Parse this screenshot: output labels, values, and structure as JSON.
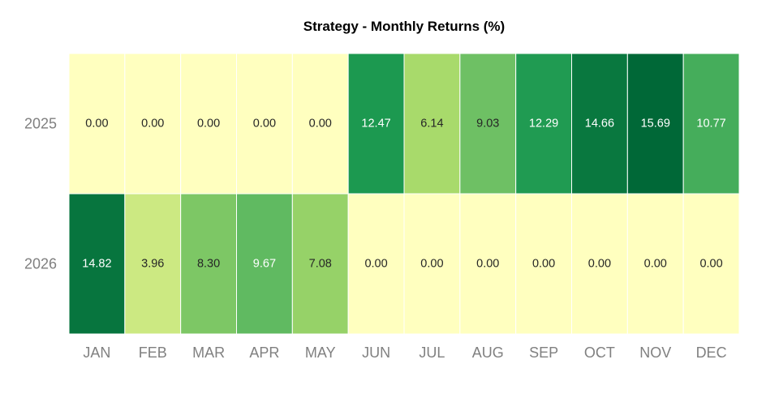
{
  "chart_data": {
    "type": "heatmap",
    "title": "Strategy - Monthly Returns (%)",
    "xlabel": "",
    "ylabel": "",
    "x_categories": [
      "JAN",
      "FEB",
      "MAR",
      "APR",
      "MAY",
      "JUN",
      "JUL",
      "AUG",
      "SEP",
      "OCT",
      "NOV",
      "DEC"
    ],
    "y_categories": [
      "2025",
      "2026"
    ],
    "values": [
      [
        0.0,
        0.0,
        0.0,
        0.0,
        0.0,
        12.47,
        6.14,
        9.03,
        12.29,
        14.66,
        15.69,
        10.77
      ],
      [
        14.82,
        3.96,
        8.3,
        9.67,
        7.08,
        0.0,
        0.0,
        0.0,
        0.0,
        0.0,
        0.0,
        0.0
      ]
    ],
    "labels": [
      [
        "0.00",
        "0.00",
        "0.00",
        "0.00",
        "0.00",
        "12.47",
        "6.14",
        "9.03",
        "12.29",
        "14.66",
        "15.69",
        "10.77"
      ],
      [
        "14.82",
        "3.96",
        "8.30",
        "9.67",
        "7.08",
        "0.00",
        "0.00",
        "0.00",
        "0.00",
        "0.00",
        "0.00",
        "0.00"
      ]
    ],
    "colormap": "RdYlGn",
    "color_range": [
      -15.69,
      15.69
    ],
    "colorbar": false,
    "grid": false
  }
}
